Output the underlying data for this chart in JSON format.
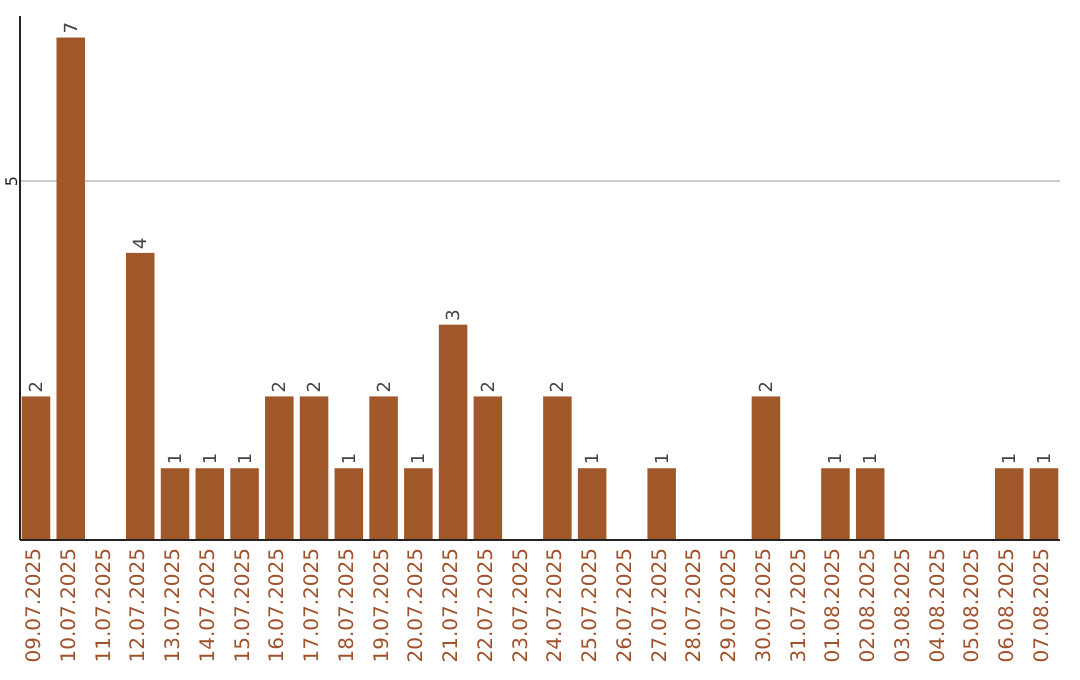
{
  "chart_data": {
    "type": "bar",
    "categories": [
      "09.07.2025",
      "10.07.2025",
      "11.07.2025",
      "12.07.2025",
      "13.07.2025",
      "14.07.2025",
      "15.07.2025",
      "16.07.2025",
      "17.07.2025",
      "18.07.2025",
      "19.07.2025",
      "20.07.2025",
      "21.07.2025",
      "22.07.2025",
      "23.07.2025",
      "24.07.2025",
      "25.07.2025",
      "26.07.2025",
      "27.07.2025",
      "28.07.2025",
      "29.07.2025",
      "30.07.2025",
      "31.07.2025",
      "01.08.2025",
      "02.08.2025",
      "03.08.2025",
      "04.08.2025",
      "05.08.2025",
      "06.08.2025",
      "07.08.2025"
    ],
    "values": [
      2,
      7,
      null,
      4,
      1,
      1,
      1,
      2,
      2,
      1,
      2,
      1,
      3,
      2,
      null,
      2,
      1,
      null,
      1,
      null,
      null,
      2,
      null,
      1,
      1,
      null,
      null,
      null,
      1,
      1
    ],
    "color": "#a0582a",
    "ylim": [
      0,
      7.3
    ],
    "yticks": [
      5
    ],
    "grid": "y",
    "data_labels": true
  }
}
